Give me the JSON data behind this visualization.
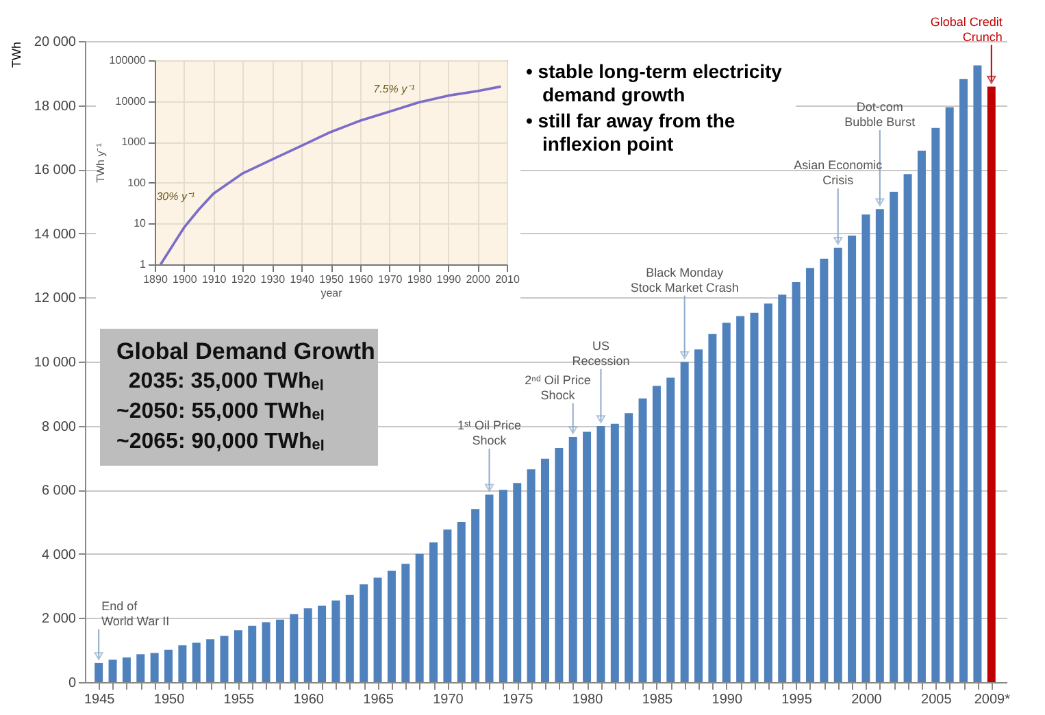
{
  "chart_data": [
    {
      "type": "bar",
      "ylabel": "TWh",
      "x": [
        1945,
        1946,
        1947,
        1948,
        1949,
        1950,
        1951,
        1952,
        1953,
        1954,
        1955,
        1956,
        1957,
        1958,
        1959,
        1960,
        1961,
        1962,
        1963,
        1964,
        1965,
        1966,
        1967,
        1968,
        1969,
        1970,
        1971,
        1972,
        1973,
        1974,
        1975,
        1976,
        1977,
        1978,
        1979,
        1980,
        1981,
        1982,
        1983,
        1984,
        1985,
        1986,
        1987,
        1988,
        1989,
        1990,
        1991,
        1992,
        1993,
        1994,
        1995,
        1996,
        1997,
        1998,
        1999,
        2000,
        2001,
        2002,
        2003,
        2004,
        2005,
        2006,
        2007,
        2008,
        2009
      ],
      "xlim": [
        1944.5,
        2009.6
      ],
      "xticks": [
        1945,
        {
          "value": 1946,
          "label": null
        },
        {
          "value": 1947,
          "label": null
        },
        {
          "value": 1948,
          "label": null
        },
        {
          "value": 1949,
          "label": null
        },
        1950,
        {
          "value": 1951,
          "label": null
        },
        {
          "value": 1952,
          "label": null
        },
        {
          "value": 1953,
          "label": null
        },
        {
          "value": 1954,
          "label": null
        },
        1955,
        {
          "value": 1956,
          "label": null
        },
        {
          "value": 1957,
          "label": null
        },
        {
          "value": 1958,
          "label": null
        },
        {
          "value": 1959,
          "label": null
        },
        1960,
        {
          "value": 1961,
          "label": null
        },
        {
          "value": 1962,
          "label": null
        },
        {
          "value": 1963,
          "label": null
        },
        {
          "value": 1964,
          "label": null
        },
        1965,
        {
          "value": 1966,
          "label": null
        },
        {
          "value": 1967,
          "label": null
        },
        {
          "value": 1968,
          "label": null
        },
        {
          "value": 1969,
          "label": null
        },
        1970,
        {
          "value": 1971,
          "label": null
        },
        {
          "value": 1972,
          "label": null
        },
        {
          "value": 1973,
          "label": null
        },
        {
          "value": 1974,
          "label": null
        },
        1975,
        {
          "value": 1976,
          "label": null
        },
        {
          "value": 1977,
          "label": null
        },
        {
          "value": 1978,
          "label": null
        },
        {
          "value": 1979,
          "label": null
        },
        1980,
        {
          "value": 1981,
          "label": null
        },
        {
          "value": 1982,
          "label": null
        },
        {
          "value": 1983,
          "label": null
        },
        {
          "value": 1984,
          "label": null
        },
        1985,
        {
          "value": 1986,
          "label": null
        },
        {
          "value": 1987,
          "label": null
        },
        {
          "value": 1988,
          "label": null
        },
        {
          "value": 1989,
          "label": null
        },
        1990,
        {
          "value": 1991,
          "label": null
        },
        {
          "value": 1992,
          "label": null
        },
        {
          "value": 1993,
          "label": null
        },
        {
          "value": 1994,
          "label": null
        },
        1995,
        {
          "value": 1996,
          "label": null
        },
        {
          "value": 1997,
          "label": null
        },
        {
          "value": 1998,
          "label": null
        },
        {
          "value": 1999,
          "label": null
        },
        2000,
        {
          "value": 2001,
          "label": null
        },
        {
          "value": 2002,
          "label": null
        },
        {
          "value": 2003,
          "label": null
        },
        {
          "value": 2004,
          "label": null
        },
        2005,
        {
          "value": 2006,
          "label": null
        },
        {
          "value": 2007,
          "label": null
        },
        {
          "value": 2008,
          "label": null
        },
        {
          "value": 2009,
          "label": "2009*"
        }
      ],
      "values": [
        600,
        700,
        770,
        870,
        910,
        1010,
        1150,
        1230,
        1340,
        1440,
        1620,
        1760,
        1870,
        1950,
        2120,
        2300,
        2380,
        2550,
        2720,
        3050,
        3260,
        3470,
        3690,
        4000,
        4360,
        4760,
        5000,
        5400,
        5850,
        6000,
        6210,
        6640,
        6970,
        7310,
        7650,
        7810,
        7990,
        8060,
        8390,
        8850,
        9240,
        9500,
        9990,
        10380,
        10860,
        11210,
        11420,
        11520,
        11810,
        12090,
        12480,
        12920,
        13210,
        13550,
        13930,
        14590,
        14760,
        15300,
        15850,
        16580,
        17290,
        17940,
        18820,
        19240,
        18580
      ],
      "colors": [
        "#4f81bd",
        "#4f81bd",
        "#4f81bd",
        "#4f81bd",
        "#4f81bd",
        "#4f81bd",
        "#4f81bd",
        "#4f81bd",
        "#4f81bd",
        "#4f81bd",
        "#4f81bd",
        "#4f81bd",
        "#4f81bd",
        "#4f81bd",
        "#4f81bd",
        "#4f81bd",
        "#4f81bd",
        "#4f81bd",
        "#4f81bd",
        "#4f81bd",
        "#4f81bd",
        "#4f81bd",
        "#4f81bd",
        "#4f81bd",
        "#4f81bd",
        "#4f81bd",
        "#4f81bd",
        "#4f81bd",
        "#4f81bd",
        "#4f81bd",
        "#4f81bd",
        "#4f81bd",
        "#4f81bd",
        "#4f81bd",
        "#4f81bd",
        "#4f81bd",
        "#4f81bd",
        "#4f81bd",
        "#4f81bd",
        "#4f81bd",
        "#4f81bd",
        "#4f81bd",
        "#4f81bd",
        "#4f81bd",
        "#4f81bd",
        "#4f81bd",
        "#4f81bd",
        "#4f81bd",
        "#4f81bd",
        "#4f81bd",
        "#4f81bd",
        "#4f81bd",
        "#4f81bd",
        "#4f81bd",
        "#4f81bd",
        "#4f81bd",
        "#4f81bd",
        "#4f81bd",
        "#4f81bd",
        "#4f81bd",
        "#4f81bd",
        "#4f81bd",
        "#4f81bd",
        "#4f81bd",
        "#c00000"
      ],
      "ylim": [
        0,
        20000
      ],
      "yticks": [
        0,
        {
          "value": 2000,
          "label": "2 000"
        },
        {
          "value": 4000,
          "label": "4 000"
        },
        {
          "value": 6000,
          "label": "6 000"
        },
        {
          "value": 8000,
          "label": "8 000"
        },
        {
          "value": 10000,
          "label": "10 000"
        },
        {
          "value": 12000,
          "label": "12 000"
        },
        {
          "value": 14000,
          "label": "14 000"
        },
        {
          "value": 16000,
          "label": "16 000"
        },
        {
          "value": 18000,
          "label": "18 000"
        },
        {
          "value": 20000,
          "label": "20 000"
        }
      ],
      "grid": "y",
      "annotations": [
        "Global Demand Growth\n  2035: 35,000 TWhₑₗ\n~2050: 55,000 TWhₑₗ\n~2065: 90,000 TWhₑₗ",
        "• stable long-term electricity demand growth",
        "• still far away from the inflexion point",
        {
          "text": "End of\nWorld War II",
          "x": 1945,
          "y": 600
        },
        {
          "text": "1ˢᵗ Oil Price\nShock",
          "x": 1973,
          "y": 5850
        },
        {
          "text": "2ⁿᵈ Oil Price\nShock",
          "x": 1979,
          "y": 7650
        },
        {
          "text": "US\nRecession",
          "x": 1981,
          "y": 7990
        },
        {
          "text": "Black Monday\nStock Market Crash",
          "x": 1987,
          "y": 9990
        },
        {
          "text": "Asian Economic\nCrisis",
          "x": 1998,
          "y": 13550
        },
        {
          "text": "Dot-com\nBubble Burst",
          "x": 2001,
          "y": 14760
        },
        {
          "text": "Global Credit\nCrunch",
          "x": 2009,
          "y": 18580
        }
      ]
    },
    {
      "type": "line",
      "xlabel": "year",
      "ylabel": "TWh y⁻¹",
      "log": "y",
      "x": [
        1892,
        1900,
        1905,
        1910,
        1920,
        1930,
        1940,
        1950,
        1960,
        1970,
        1980,
        1990,
        2000,
        2008
      ],
      "series": [
        {
          "color": "#7b6cc9",
          "values": [
            1,
            8,
            22,
            54,
            170,
            370,
            800,
            1750,
            3300,
            5500,
            9300,
            13600,
            17600,
            22700
          ]
        }
      ],
      "xlim": [
        1890,
        2010
      ],
      "xticks": [
        1890,
        1900,
        1910,
        1920,
        1930,
        1940,
        1950,
        1960,
        1970,
        1980,
        1990,
        2000,
        2010
      ],
      "ylim": [
        1,
        100000
      ],
      "yticks": [
        1,
        10,
        100,
        1000,
        10000,
        100000
      ],
      "grid": true,
      "marker": "none",
      "annotations": [
        {
          "text": "30% y⁻¹",
          "x": 1905,
          "y": 22
        },
        {
          "text": "7.5% y⁻¹",
          "x": 1980,
          "y": 9300
        }
      ]
    }
  ]
}
